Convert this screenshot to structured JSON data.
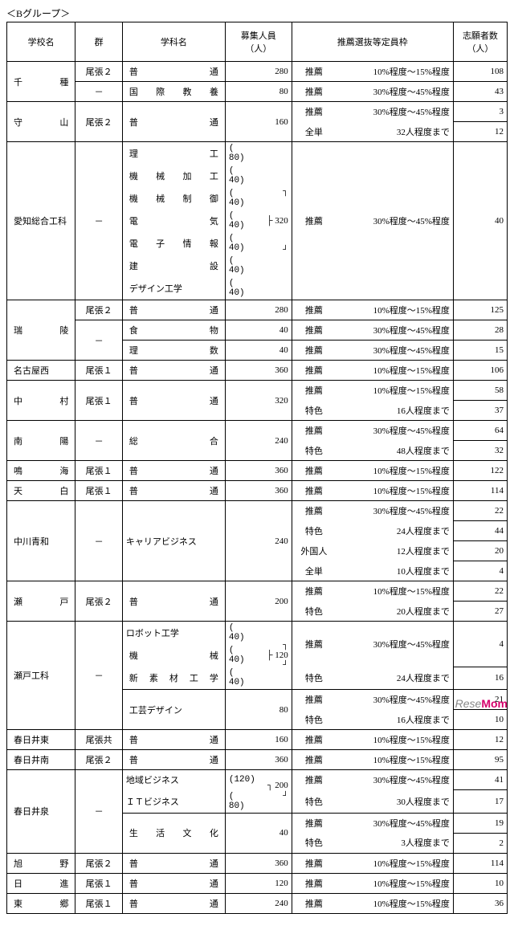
{
  "group_title": "＜Bグループ＞",
  "headers": {
    "school": "学校名",
    "gun": "群",
    "dept": "学科名",
    "capacity": "募集人員\n（人）",
    "quota": "推薦選抜等定員枠",
    "applicants": "志願者数\n（人）"
  },
  "q": {
    "rec": "推薦",
    "toku": "特色",
    "zen": "全単",
    "gai": "外国人",
    "r10_15": "10%程度～15%程度",
    "r30_45": "30%程度～45%程度",
    "p32": "32人程度まで",
    "p48": "48人程度まで",
    "p24": "24人程度まで",
    "p16": "16人程度まで",
    "p12": "12人程度まで",
    "p10": "10人程度まで",
    "p20": "20人程度まで",
    "p30": "30人程度まで",
    "p3": "3人程度まで"
  },
  "rows": {
    "chikusa": {
      "school": "千種",
      "gun1": "尾張２",
      "dept1": "普通",
      "cap1": "280",
      "app1": "108",
      "gun2": "－",
      "dept2": "国際教養",
      "cap2": "80",
      "app2": "43"
    },
    "moriyama": {
      "school": "守山",
      "gun": "尾張２",
      "dept": "普通",
      "cap": "160",
      "app1": "3",
      "app2": "12"
    },
    "aichi": {
      "school": "愛知総合工科",
      "gun": "－",
      "d1": "理工",
      "c1": "( 80)",
      "d2": "機械加工",
      "c2": "( 40)",
      "d3": "機械制御",
      "c3": "( 40)",
      "d4": "電気",
      "c4": "( 40)",
      "d5": "電子情報",
      "c5": "( 40)",
      "d6": "建設",
      "c6": "( 40)",
      "d7": "デザイン工学",
      "c7": "( 40)",
      "total": "320",
      "app": "40"
    },
    "zuiryo": {
      "school": "瑞陵",
      "gun1": "尾張２",
      "dept1": "普通",
      "cap1": "280",
      "app1": "125",
      "gun2": "－",
      "dept2": "食物",
      "cap2": "40",
      "app2": "28",
      "dept3": "理数",
      "cap3": "40",
      "app3": "15"
    },
    "nagoyanishi": {
      "school": "名古屋西",
      "gun": "尾張１",
      "dept": "普通",
      "cap": "360",
      "app": "106"
    },
    "nakamura": {
      "school": "中村",
      "gun": "尾張１",
      "dept": "普通",
      "cap": "320",
      "app1": "58",
      "app2": "37"
    },
    "nanyo": {
      "school": "南陽",
      "gun": "－",
      "dept": "総合",
      "cap": "240",
      "app1": "64",
      "app2": "32"
    },
    "narumi": {
      "school": "鳴海",
      "gun": "尾張１",
      "dept": "普通",
      "cap": "360",
      "app": "122"
    },
    "tenpaku": {
      "school": "天白",
      "gun": "尾張１",
      "dept": "普通",
      "cap": "360",
      "app": "114"
    },
    "nakagawa": {
      "school": "中川青和",
      "gun": "－",
      "dept": "キャリアビジネス",
      "cap": "240",
      "a1": "22",
      "a2": "44",
      "a3": "20",
      "a4": "4"
    },
    "seto": {
      "school": "瀬戸",
      "gun": "尾張２",
      "dept": "普通",
      "cap": "200",
      "a1": "22",
      "a2": "27"
    },
    "setokoka": {
      "school": "瀬戸工科",
      "gun": "－",
      "d1": "ロボット工学",
      "c1": "( 40)",
      "d2": "機械",
      "c2": "( 40)",
      "d3": "新素材工学",
      "c3": "( 40)",
      "total": "120",
      "a1": "4",
      "a2": "16",
      "d4": "工芸デザイン",
      "cap4": "80",
      "a3": "21",
      "a4": "10"
    },
    "kasugaie": {
      "school": "春日井東",
      "gun": "尾張共",
      "dept": "普通",
      "cap": "160",
      "app": "12"
    },
    "kasugais": {
      "school": "春日井南",
      "gun": "尾張２",
      "dept": "普通",
      "cap": "360",
      "app": "95"
    },
    "kasugaizumi": {
      "school": "春日井泉",
      "gun": "－",
      "d1": "地域ビジネス",
      "c1": "(120)",
      "d2": "ＩＴビジネス",
      "c2": "( 80)",
      "total": "200",
      "a1": "41",
      "a2": "17",
      "d3": "生活文化",
      "cap3": "40",
      "a3": "19",
      "a4": "2"
    },
    "asahino": {
      "school": "旭野",
      "gun": "尾張２",
      "dept": "普通",
      "cap": "360",
      "app": "114"
    },
    "nisshin": {
      "school": "日進",
      "gun": "尾張１",
      "dept": "普通",
      "cap": "120",
      "app": "10"
    },
    "togo": {
      "school": "東郷",
      "gun": "尾張１",
      "dept": "普通",
      "cap": "240",
      "app": "36"
    }
  },
  "watermark": {
    "a": "Rese",
    "b": "Mom"
  }
}
